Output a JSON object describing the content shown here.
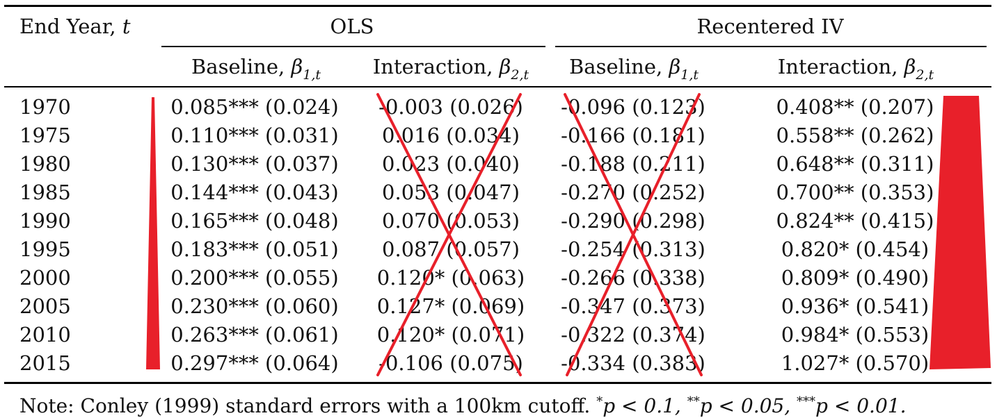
{
  "header": {
    "end_year_label": "End Year, ",
    "end_year_var": "t",
    "ols_label": "OLS",
    "iv_label": "Recentered IV",
    "baseline_label": "Baseline, ",
    "baseline_symbol": "β",
    "baseline_sub": "1,t",
    "interaction_label": "Interaction, ",
    "interaction_symbol": "β",
    "interaction_sub": "2,t"
  },
  "rows": [
    {
      "year": "1970",
      "ols_base": "0.085*** (0.024)",
      "ols_int": "-0.003 (0.026)",
      "iv_base": "-0.096 (0.123)",
      "iv_int": "0.408** (0.207)"
    },
    {
      "year": "1975",
      "ols_base": "0.110*** (0.031)",
      "ols_int": "0.016 (0.034)",
      "iv_base": "-0.166 (0.181)",
      "iv_int": "0.558** (0.262)"
    },
    {
      "year": "1980",
      "ols_base": "0.130*** (0.037)",
      "ols_int": "0.023 (0.040)",
      "iv_base": "-0.188 (0.211)",
      "iv_int": "0.648** (0.311)"
    },
    {
      "year": "1985",
      "ols_base": "0.144*** (0.043)",
      "ols_int": "0.053 (0.047)",
      "iv_base": "-0.270 (0.252)",
      "iv_int": "0.700** (0.353)"
    },
    {
      "year": "1990",
      "ols_base": "0.165*** (0.048)",
      "ols_int": "0.070 (0.053)",
      "iv_base": "-0.290 (0.298)",
      "iv_int": "0.824** (0.415)"
    },
    {
      "year": "1995",
      "ols_base": "0.183*** (0.051)",
      "ols_int": "0.087 (0.057)",
      "iv_base": "-0.254 (0.313)",
      "iv_int": "0.820* (0.454)"
    },
    {
      "year": "2000",
      "ols_base": "0.200*** (0.055)",
      "ols_int": "0.120* (0.063)",
      "iv_base": "-0.266 (0.338)",
      "iv_int": "0.809* (0.490)"
    },
    {
      "year": "2005",
      "ols_base": "0.230*** (0.060)",
      "ols_int": "0.127* (0.069)",
      "iv_base": "-0.347 (0.373)",
      "iv_int": "0.936* (0.541)"
    },
    {
      "year": "2010",
      "ols_base": "0.263*** (0.061)",
      "ols_int": "0.120* (0.071)",
      "iv_base": "-0.322 (0.374)",
      "iv_int": "0.984* (0.553)"
    },
    {
      "year": "2015",
      "ols_base": "0.297*** (0.064)",
      "ols_int": "-0.106 (0.075)",
      "iv_base": "-0.334 (0.383)",
      "iv_int": "1.027* (0.570)"
    }
  ],
  "note": {
    "prefix": "Note: Conley (1999) standard errors with a 100km cutoff. ",
    "s1": "*",
    "t1": "p < 0.1, ",
    "s2": "**",
    "t2": "p < 0.05, ",
    "s3": "***",
    "t3": "p < 0.01."
  },
  "colors": {
    "annotation_red": "#e8202a"
  }
}
